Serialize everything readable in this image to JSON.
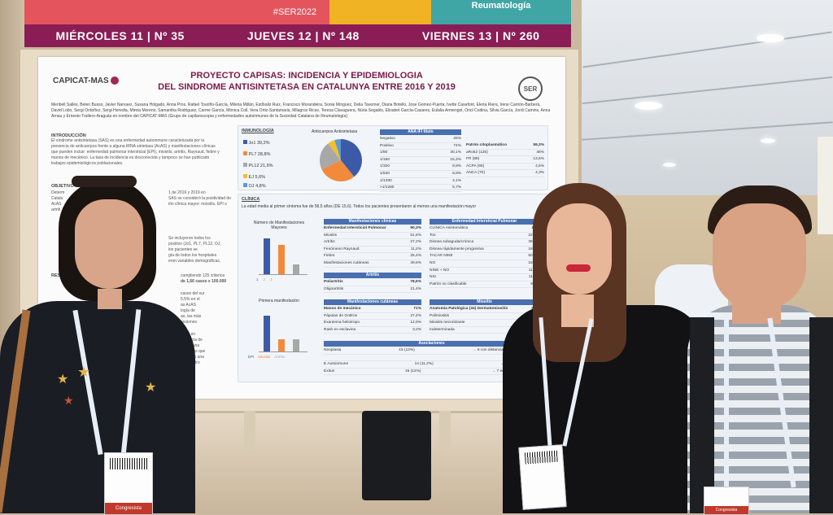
{
  "banner": {
    "hashtag": "#SER2022",
    "org": "Reumatología",
    "days": [
      "MIÉRCOLES 11 | Nº 35",
      "JUEVES 12 | Nº 148",
      "VIERNES 13 | Nº 260"
    ]
  },
  "poster": {
    "logo_left": "CAPICAT-MAS",
    "logo_right": "SER",
    "title_line1": "PROYECTO CAPISAS: INCIDENCIA Y EPIDEMIOLOGIA",
    "title_line2": "DEL SINDROME ANTISINTETASA EN CATALUNYA ENTRE 2016 Y 2019",
    "authors": "Meribell Sallés, Belen Busso, Javier Narvaez, Susana Holgado, Anna Pros, Rafael Touriño-García, Milena Millán, Estíbaliz Ruiz, Francisco Morandeira, Sonia Mínguez, Delia Taverner, Diana Botello, Jose Gomez-Puerta, Ivette Casafont, Elena Riera, Irene Carrión-Barberà, David Lobo, Sergi Ordoñez, Sergi Heredia, Mireia Moreno, Samantha Rodriguez, Carme García, Mònica Coll, Vera Ortiz-Santamaria, Milagros Ricse, Teresa Clavaguera, Núria Segalés, Elisabet García-Casares, Eulalia Armengol, Oriol Codina, Silvia García, Jordi Camins, Anna Arnau y Ernesto Trallero-Araguás en nombre del CAPICAT-MAS (Grupo de capilaroscopia y enfermedades autoinmunes de la Sociedad Catalana de Reumatología)",
    "intro_heading": "INTRODUCCIÓN",
    "intro_text": "El síndrome antisintetasa (SAS) es una enfermedad autoinmune caracterizada por la presencia de anticuerpos frente a alguna tRNA sintetasa (AcAS) y manifestaciones clínicas que pueden incluir: enfermedad pulmonar intersticial (EPI), miositis, artritis, Raynaud, fiebre y manos de mecánico. La tasa de incidencia es desconocida y tampoco se han publicado trabajos epidemiológicos poblacionales.",
    "objective_heading": "OBJETIVO",
    "objective_fragments": [
      "Determ",
      "Catalu",
      "AcAS",
      "artriti",
      "1 de 2016 y 2019 en",
      "SAS se consideró la positividad de",
      "ión clínica mayor: miositis, EPI o"
    ],
    "methods_fragments": [
      "Se incluyeron todos los",
      "positivo (Jo1, PL7, PL12, OJ,",
      "los pacientes se",
      "gía de todos los hospitales",
      "eron variables demográficas,"
    ],
    "results_heading": "RESULTADOS",
    "results_fragments": [
      "cumpliendo 125 criterios",
      "de 1,66 casos x 100.000",
      "casos del sur",
      "5,5% en el",
      "as AcAS",
      "logía de",
      "as, las más",
      "ensiones",
      "2019 en",
      "ausencia de",
      "AS es una",
      "inaramos que",
      "AcAS es una",
      "en nuestro"
    ],
    "immunology_heading": "INMUNOLOGÍA",
    "pie_title": "Anticuerpos Antisintetasa",
    "pie_legend": [
      {
        "label": "Jo1",
        "value": "39,2%",
        "color": "#3d5aa8"
      },
      {
        "label": "PL7",
        "value": "28,8%",
        "color": "#f28a3c"
      },
      {
        "label": "PL12",
        "value": "21,6%",
        "color": "#a8a8a8"
      },
      {
        "label": "EJ",
        "value": "5,6%",
        "color": "#f2c02e"
      },
      {
        "label": "OJ",
        "value": "4,8%",
        "color": "#5b9bd5"
      }
    ],
    "ana_table": {
      "header": "ANA IFI título",
      "rows": [
        [
          "Negativo",
          "26%"
        ],
        [
          "Positivo",
          "74%"
        ],
        [
          "1/80",
          "30,1%"
        ],
        [
          "1/160",
          "16,3%"
        ],
        [
          "1/320",
          "8,9%"
        ],
        [
          "1/640",
          "8,9%"
        ],
        [
          "1/1280",
          "4,1%"
        ],
        [
          ">1/1280",
          "5,7%"
        ]
      ]
    },
    "cyto_table": {
      "rows": [
        [
          "Patrón citoplasmático",
          "59,3%"
        ],
        [
          "aRo52 (125)",
          "48%"
        ],
        [
          "FR (88)",
          "13,6%"
        ],
        [
          "ACPA (65)",
          "4,6%"
        ],
        [
          "ANCA (70)",
          "4,3%"
        ]
      ]
    },
    "clinic_heading": "CLÍNICA",
    "clinic_text": "La edad media al primer síntoma fue de 58,5 años (DE 15,6). Todos los pacientes presentaron al menos una manifestación mayor",
    "chart1": {
      "title": "Número de Manifestaciones Mayores",
      "legend": [
        "1",
        "2",
        "3"
      ],
      "values": [
        100,
        82,
        28
      ]
    },
    "chart2": {
      "title": "Primera manifestación",
      "legend": [
        "EPI",
        "Miositis",
        "Artritis"
      ],
      "values": [
        100,
        34,
        34
      ]
    },
    "clin_table": {
      "header": "Manifestaciones clínicas",
      "rows": [
        [
          "Enfermedad Intersticial Pulmonar",
          "90,3%"
        ],
        [
          "Miositis",
          "51,6%"
        ],
        [
          "Artritis",
          "27,2%"
        ],
        [
          "Fenómeno Raynaud",
          "11,2%"
        ],
        [
          "Fiebre",
          "25,4%"
        ],
        [
          "Manifestaciones cutáneas",
          "49,6%"
        ]
      ]
    },
    "artritis_table": {
      "header": "Artritis",
      "rows": [
        [
          "Poliartritis",
          "78,6%"
        ],
        [
          "Oligoartritis",
          "21,4%"
        ]
      ]
    },
    "cut_table": {
      "header": "Manifestaciones cutáneas",
      "rows": [
        [
          "Manos de mecánico",
          "71%"
        ],
        [
          "Pápulas de Gottron",
          "27,4%"
        ],
        [
          "Exantema heliotropo",
          "12,9%"
        ],
        [
          "Rash en esclavina",
          "3,2%"
        ]
      ]
    },
    "epi_table": {
      "header": "Enfermedad Intersticial Pulmonar",
      "rows": [
        [
          "CLÍNICA  Asintomática",
          "17%"
        ],
        [
          "Tos",
          "22,3%"
        ],
        [
          "Disnea subaguda/crónica",
          "39,3%"
        ],
        [
          "Disnea rápidamente progresiva",
          "18,8%"
        ],
        [
          "TACAR  NINE",
          "50,5%"
        ],
        [
          "NO",
          "15,3%"
        ],
        [
          "NINE + NO",
          "11,7%"
        ],
        [
          "NIU",
          "11,7%"
        ],
        [
          "Patrón no clasificable",
          "9,9%"
        ]
      ]
    },
    "miositis_table": {
      "header": "Miositis",
      "rows": [
        [
          "Anatomía Patológica (34)  Dermatomiositis",
          "50%"
        ],
        [
          "Polimiositis",
          ""
        ],
        [
          "Miositis necrotizante",
          ""
        ],
        [
          "Indeterminada",
          ""
        ]
      ]
    },
    "assoc_table": {
      "header": "Asociaciones",
      "rows": [
        [
          "Neoplasia",
          "15 (12%)",
          "→ 8 con distancia diagnóstica < 3años"
        ],
        [
          "",
          "",
          "→ 5 Neo mama"
        ],
        [
          "E.Autoinmune",
          "14 (11,2%)",
          "→ 6 Síndrome Sjögren"
        ],
        [
          "Exitus",
          "15 (12%)",
          "→ 7 en relación con el SAS"
        ]
      ]
    }
  },
  "badges": {
    "left": "Congresista",
    "right": "Congresista"
  }
}
